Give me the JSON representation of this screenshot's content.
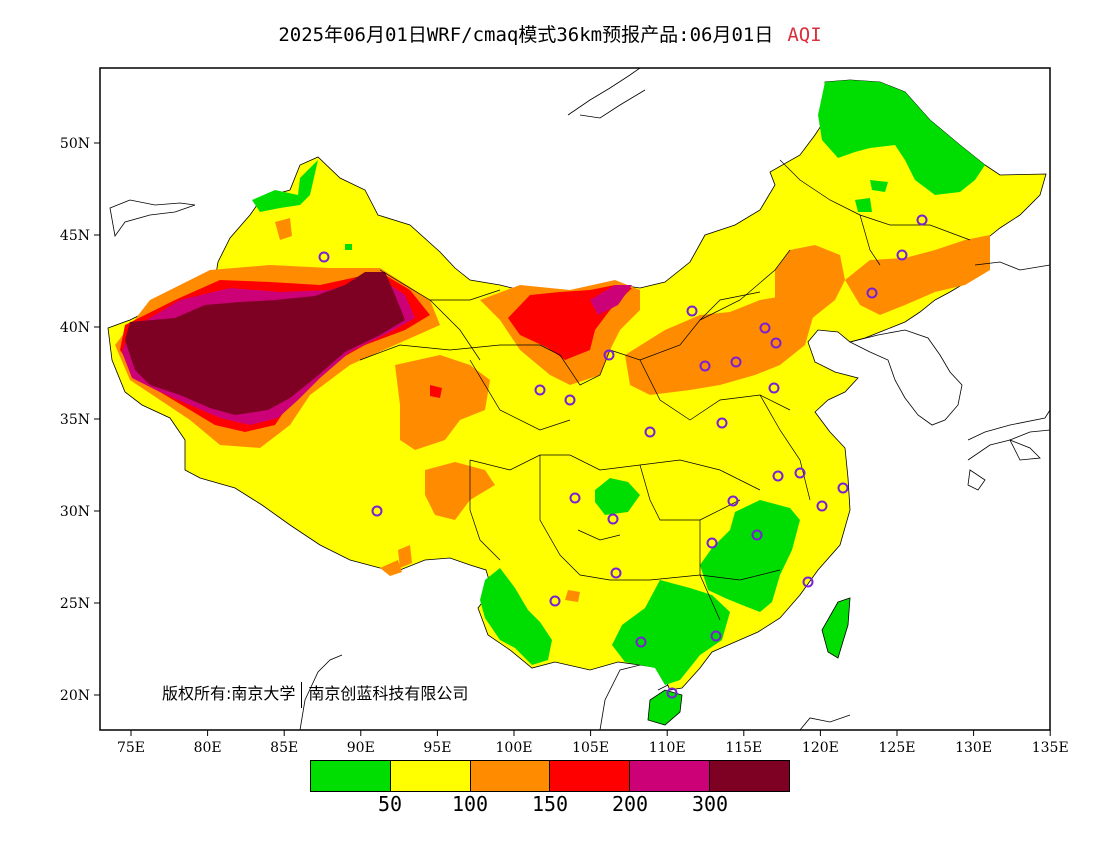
{
  "title": {
    "main": "2025年06月01日WRF/cmaq模式36km预报产品:06月01日",
    "variable": "AQI"
  },
  "map": {
    "lat_labels": [
      "50N",
      "45N",
      "40N",
      "35N",
      "30N",
      "25N",
      "20N"
    ],
    "lon_labels": [
      "75E",
      "80E",
      "85E",
      "90E",
      "95E",
      "100E",
      "105E",
      "110E",
      "115E",
      "120E",
      "125E",
      "130E",
      "135E"
    ],
    "colors": {
      "green": "#00dd00",
      "yellow": "#ffff00",
      "orange": "#ff8c00",
      "red": "#ff0000",
      "magenta": "#cc0077",
      "maroon": "#7e0023",
      "station_marker": "#7a1fd6"
    },
    "station_icon": "circle-icon"
  },
  "copyright": {
    "owner_label": "版权所有:",
    "org1": "南京大学",
    "org2": "南京创蓝科技有限公司"
  },
  "legend": {
    "colors": [
      "#00dd00",
      "#ffff00",
      "#ff8c00",
      "#ff0000",
      "#cc0077",
      "#7e0023"
    ],
    "labels": [
      "50",
      "100",
      "150",
      "200",
      "300"
    ]
  }
}
